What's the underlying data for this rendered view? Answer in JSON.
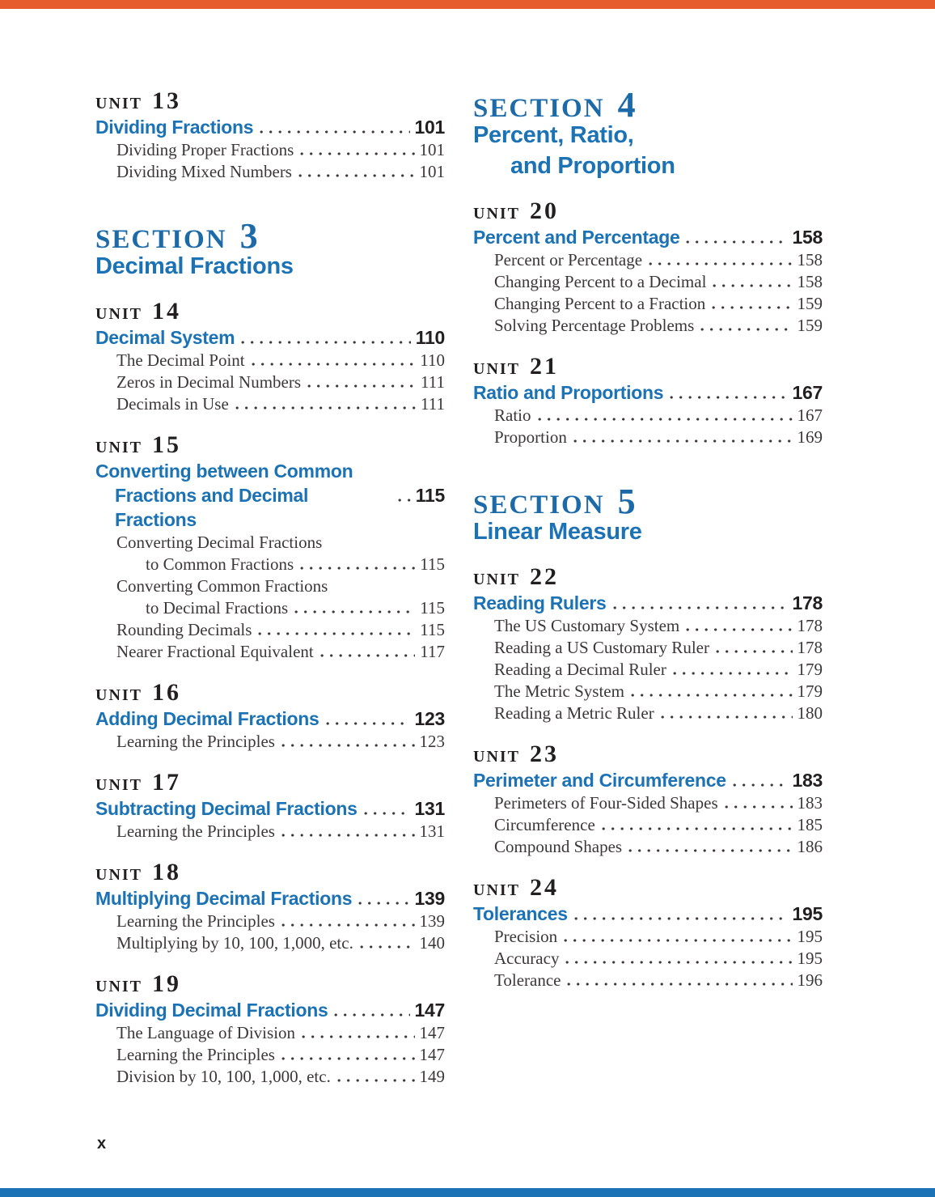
{
  "page": {
    "footer_page_number": "x",
    "colors": {
      "accent_blue": "#1B72B4",
      "section_blue": "#1C6BA8",
      "accent_orange": "#E65C2C",
      "heading_dark": "#231F20",
      "body_text": "#3C3738"
    }
  },
  "labels": {
    "unit": "UNIT",
    "section": "SECTION"
  },
  "columns": [
    {
      "blocks": [
        {
          "kind": "unit",
          "number": "13",
          "title_lines": [
            "Dividing Fractions"
          ],
          "page": "101",
          "entries": [
            {
              "lines": [
                "Dividing Proper Fractions"
              ],
              "page": "101"
            },
            {
              "lines": [
                "Dividing Mixed Numbers"
              ],
              "page": "101"
            }
          ]
        },
        {
          "kind": "section",
          "number": "3",
          "title_lines": [
            "Decimal Fractions"
          ]
        },
        {
          "kind": "unit",
          "number": "14",
          "title_lines": [
            "Decimal System"
          ],
          "page": "110",
          "entries": [
            {
              "lines": [
                "The Decimal Point"
              ],
              "page": "110"
            },
            {
              "lines": [
                "Zeros in Decimal Numbers"
              ],
              "page": "111"
            },
            {
              "lines": [
                "Decimals in Use"
              ],
              "page": "111"
            }
          ]
        },
        {
          "kind": "unit",
          "number": "15",
          "title_lines": [
            "Converting between Common",
            "Fractions and Decimal Fractions"
          ],
          "page": "115",
          "entries": [
            {
              "lines": [
                "Converting Decimal Fractions",
                "to Common Fractions"
              ],
              "page": "115"
            },
            {
              "lines": [
                "Converting Common Fractions",
                "to Decimal Fractions"
              ],
              "page": "115"
            },
            {
              "lines": [
                "Rounding Decimals"
              ],
              "page": "115"
            },
            {
              "lines": [
                "Nearer Fractional Equivalent"
              ],
              "page": "117"
            }
          ]
        },
        {
          "kind": "unit",
          "number": "16",
          "title_lines": [
            "Adding Decimal Fractions"
          ],
          "page": "123",
          "entries": [
            {
              "lines": [
                "Learning the Principles"
              ],
              "page": "123"
            }
          ]
        },
        {
          "kind": "unit",
          "number": "17",
          "title_lines": [
            "Subtracting Decimal Fractions"
          ],
          "page": "131",
          "entries": [
            {
              "lines": [
                "Learning the Principles"
              ],
              "page": "131"
            }
          ]
        },
        {
          "kind": "unit",
          "number": "18",
          "title_lines": [
            "Multiplying Decimal Fractions"
          ],
          "page": "139",
          "entries": [
            {
              "lines": [
                "Learning the Principles"
              ],
              "page": "139"
            },
            {
              "lines": [
                "Multiplying by 10, 100, 1,000, etc."
              ],
              "page": "140"
            }
          ]
        },
        {
          "kind": "unit",
          "number": "19",
          "title_lines": [
            "Dividing Decimal Fractions"
          ],
          "page": "147",
          "entries": [
            {
              "lines": [
                "The Language of Division"
              ],
              "page": "147"
            },
            {
              "lines": [
                "Learning the Principles"
              ],
              "page": "147"
            },
            {
              "lines": [
                "Division by 10, 100, 1,000, etc."
              ],
              "page": "149"
            }
          ]
        }
      ]
    },
    {
      "blocks": [
        {
          "kind": "section",
          "number": "4",
          "title_lines": [
            "Percent, Ratio,",
            "and Proportion"
          ]
        },
        {
          "kind": "unit",
          "number": "20",
          "title_lines": [
            "Percent and Percentage"
          ],
          "page": "158",
          "entries": [
            {
              "lines": [
                "Percent or Percentage"
              ],
              "page": "158"
            },
            {
              "lines": [
                "Changing Percent to a Decimal"
              ],
              "page": "158"
            },
            {
              "lines": [
                "Changing Percent to a Fraction"
              ],
              "page": "159"
            },
            {
              "lines": [
                "Solving Percentage Problems"
              ],
              "page": "159"
            }
          ]
        },
        {
          "kind": "unit",
          "number": "21",
          "title_lines": [
            "Ratio and Proportions"
          ],
          "page": "167",
          "entries": [
            {
              "lines": [
                "Ratio"
              ],
              "page": "167"
            },
            {
              "lines": [
                "Proportion"
              ],
              "page": "169"
            }
          ]
        },
        {
          "kind": "section",
          "number": "5",
          "title_lines": [
            "Linear Measure"
          ]
        },
        {
          "kind": "unit",
          "number": "22",
          "title_lines": [
            "Reading Rulers"
          ],
          "page": "178",
          "entries": [
            {
              "lines": [
                "The US Customary System"
              ],
              "page": "178"
            },
            {
              "lines": [
                "Reading a US Customary Ruler"
              ],
              "page": "178"
            },
            {
              "lines": [
                "Reading a Decimal Ruler"
              ],
              "page": "179"
            },
            {
              "lines": [
                "The Metric System"
              ],
              "page": "179"
            },
            {
              "lines": [
                "Reading a Metric Ruler"
              ],
              "page": "180"
            }
          ]
        },
        {
          "kind": "unit",
          "number": "23",
          "title_lines": [
            "Perimeter and Circumference"
          ],
          "page": "183",
          "entries": [
            {
              "lines": [
                "Perimeters of Four-Sided Shapes"
              ],
              "page": "183"
            },
            {
              "lines": [
                "Circumference"
              ],
              "page": "185"
            },
            {
              "lines": [
                "Compound Shapes"
              ],
              "page": "186"
            }
          ]
        },
        {
          "kind": "unit",
          "number": "24",
          "title_lines": [
            "Tolerances"
          ],
          "page": "195",
          "entries": [
            {
              "lines": [
                "Precision"
              ],
              "page": "195"
            },
            {
              "lines": [
                "Accuracy"
              ],
              "page": "195"
            },
            {
              "lines": [
                "Tolerance"
              ],
              "page": "196"
            }
          ]
        }
      ]
    }
  ]
}
